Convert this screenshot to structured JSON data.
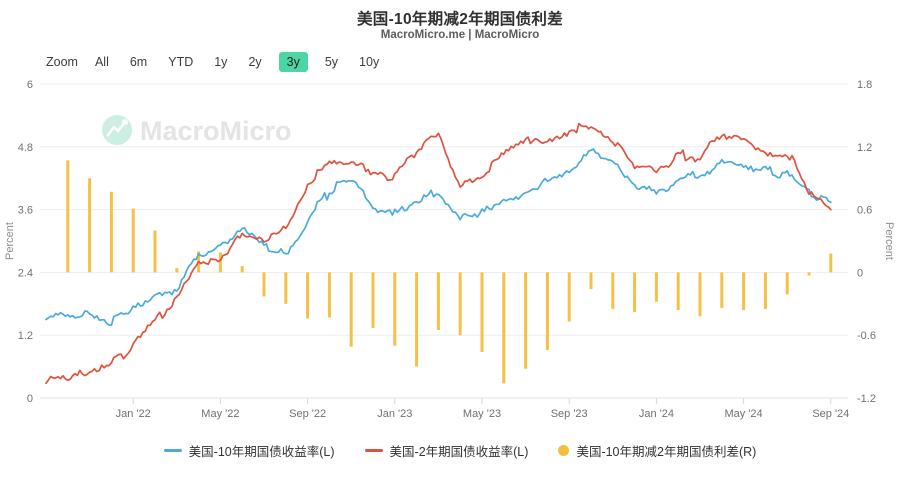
{
  "header": {
    "title": "美国-10年期减2年期国债利差",
    "subtitle": "MacroMicro.me | MacroMicro"
  },
  "toolbar": {
    "zoom_label": "Zoom",
    "ranges": [
      "All",
      "6m",
      "YTD",
      "1y",
      "2y",
      "3y",
      "5y",
      "10y"
    ],
    "active_range": "3y"
  },
  "watermark": {
    "text": "MacroMicro",
    "logo": "macromicro-logo-icon",
    "circle_color": "#cdeee2",
    "text_color": "#e4e4e4"
  },
  "chart_data": {
    "type": "mixed-line-bar",
    "months": [
      "Sep '21",
      "Oct '21",
      "Nov '21",
      "Dec '21",
      "Jan '22",
      "Feb '22",
      "Mar '22",
      "Apr '22",
      "May '22",
      "Jun '22",
      "Jul '22",
      "Aug '22",
      "Sep '22",
      "Oct '22",
      "Nov '22",
      "Dec '22",
      "Jan '23",
      "Feb '23",
      "Mar '23",
      "Apr '23",
      "May '23",
      "Jun '23",
      "Jul '23",
      "Aug '23",
      "Sep '23",
      "Oct '23",
      "Nov '23",
      "Dec '23",
      "Jan '24",
      "Feb '24",
      "Mar '24",
      "Apr '24",
      "May '24",
      "Jun '24",
      "Jul '24",
      "Aug '24",
      "Sep '24"
    ],
    "x_tick_indices": [
      4,
      8,
      12,
      16,
      20,
      24,
      28,
      32,
      36
    ],
    "axes": {
      "left": {
        "title": "Percent",
        "ticks": [
          0,
          1.2,
          2.4,
          3.6,
          4.8,
          6
        ],
        "range": [
          0,
          6
        ]
      },
      "right": {
        "title": "Percent",
        "ticks": [
          -1.2,
          -0.6,
          0,
          0.6,
          1.2,
          1.8
        ],
        "range": [
          -1.2,
          1.8
        ]
      }
    },
    "grid": true,
    "legend_position": "bottom",
    "series": [
      {
        "name": "美国-10年期国债收益率(L)",
        "type": "line",
        "axis": "left",
        "color": "#4aabdb",
        "values": [
          1.5,
          1.57,
          1.55,
          1.45,
          1.75,
          1.93,
          2.1,
          2.7,
          2.95,
          3.25,
          2.9,
          2.75,
          3.4,
          3.95,
          4.2,
          3.6,
          3.52,
          3.7,
          3.95,
          3.45,
          3.52,
          3.72,
          3.88,
          4.12,
          4.35,
          4.8,
          4.55,
          4.0,
          3.95,
          4.15,
          4.25,
          4.52,
          4.5,
          4.35,
          4.3,
          3.9,
          3.74
        ]
      },
      {
        "name": "美国-2年期国债收益率(L)",
        "type": "line",
        "axis": "left",
        "color": "#e0513e",
        "values": [
          0.28,
          0.38,
          0.5,
          0.68,
          1.0,
          1.45,
          1.95,
          2.62,
          2.65,
          3.1,
          2.95,
          3.3,
          4.1,
          4.45,
          4.5,
          4.35,
          4.2,
          4.7,
          5.05,
          4.05,
          4.28,
          4.65,
          4.88,
          4.98,
          5.1,
          5.18,
          4.9,
          4.4,
          4.32,
          4.62,
          4.6,
          5.0,
          4.92,
          4.72,
          4.7,
          3.92,
          3.6
        ]
      },
      {
        "name": "美国-10年期减2年期国债利差(R)",
        "type": "bar",
        "axis": "right",
        "color": "#f4c144",
        "values": [
          null,
          1.07,
          0.9,
          0.77,
          0.61,
          0.4,
          0.04,
          0.2,
          0.19,
          0.06,
          -0.23,
          -0.3,
          -0.44,
          -0.43,
          -0.71,
          -0.53,
          -0.7,
          -0.9,
          -0.55,
          -0.6,
          -0.76,
          -1.06,
          -0.92,
          -0.74,
          -0.47,
          -0.16,
          -0.35,
          -0.38,
          -0.28,
          -0.36,
          -0.42,
          -0.34,
          -0.36,
          -0.35,
          -0.21,
          -0.03,
          0.18
        ]
      }
    ]
  }
}
